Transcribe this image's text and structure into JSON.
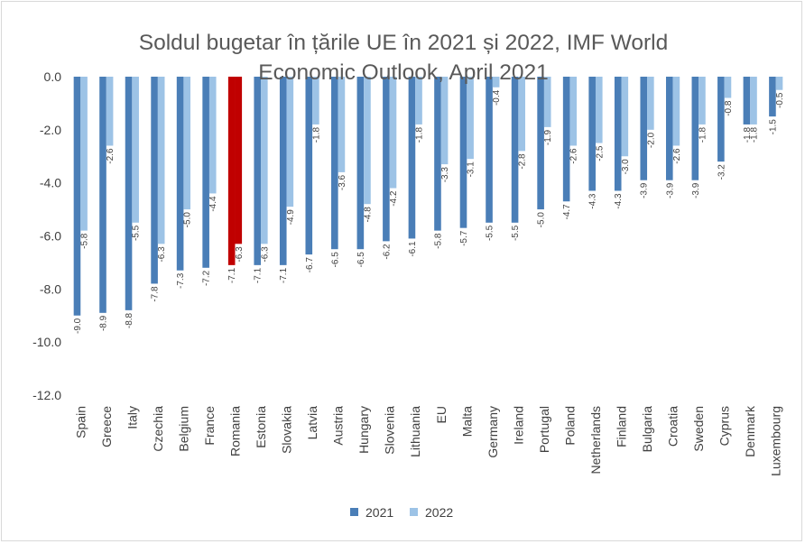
{
  "chart_data": {
    "type": "bar",
    "title": "Soldul bugetar în țările UE în 2021 și 2022, IMF World Economic Outlook, April 2021",
    "title_lines": [
      "Soldul bugetar în țările UE în 2021 și 2022, IMF World",
      "Economic Outlook, April 2021"
    ],
    "xlabel": "",
    "ylabel": "",
    "ylim": [
      -12,
      0
    ],
    "yticks": [
      0,
      -2,
      -4,
      -6,
      -8,
      -10,
      -12
    ],
    "ytick_labels": [
      "0.0",
      "-2.0",
      "-4.0",
      "-6.0",
      "-8.0",
      "-10.0",
      "-12.0"
    ],
    "grid": false,
    "legend": "bottom",
    "categories": [
      "Spain",
      "Greece",
      "Italy",
      "Czechia",
      "Belgium",
      "France",
      "Romania",
      "Estonia",
      "Slovakia",
      "Latvia",
      "Austria",
      "Hungary",
      "Slovenia",
      "Lithuania",
      "EU",
      "Malta",
      "Germany",
      "Ireland",
      "Portugal",
      "Poland",
      "Netherlands",
      "Finland",
      "Bulgaria",
      "Croatia",
      "Sweden",
      "Cyprus",
      "Denmark",
      "Luxembourg"
    ],
    "series": [
      {
        "name": "2021",
        "color": "#4a7eb7",
        "values": [
          -9.0,
          -8.9,
          -8.8,
          -7.8,
          -7.3,
          -7.2,
          -7.1,
          -7.1,
          -7.1,
          -6.7,
          -6.5,
          -6.5,
          -6.2,
          -6.1,
          -5.8,
          -5.7,
          -5.5,
          -5.5,
          -5.0,
          -4.7,
          -4.3,
          -4.3,
          -3.9,
          -3.9,
          -3.9,
          -3.2,
          -1.8,
          -1.5
        ],
        "labels": [
          "-9.0",
          "-8.9",
          "-8.8",
          "-7.8",
          "-7.3",
          "-7.2",
          "-7.1",
          "-7.1",
          "-7.1",
          "-6.7",
          "-6.5",
          "-6.5",
          "-6.2",
          "-6.1",
          "-5.8",
          "-5.7",
          "-5.5",
          "-5.5",
          "-5.0",
          "-4.7",
          "-4.3",
          "-4.3",
          "-3.9",
          "-3.9",
          "-3.9",
          "-3.2",
          "-1.8",
          "-1.5"
        ]
      },
      {
        "name": "2022",
        "color": "#9dc3e6",
        "values": [
          -5.8,
          -2.6,
          -5.5,
          -6.3,
          -5.0,
          -4.4,
          -6.3,
          -6.3,
          -4.9,
          -1.8,
          -3.6,
          -4.8,
          -4.2,
          -1.8,
          -3.3,
          -3.1,
          -0.4,
          -2.8,
          -1.9,
          -2.6,
          -2.5,
          -3.0,
          -2.0,
          -2.6,
          -1.8,
          -0.8,
          -1.8,
          -0.5
        ],
        "labels": [
          "-5.8",
          "-2.6",
          "-5.5",
          "-6.3",
          "-5.0",
          "-4.4",
          "-6.3",
          "-6.3",
          "-4.9",
          "-1.8",
          "-3.6",
          "-4.8",
          "-4.2",
          "-1.8",
          "-3.3",
          "-3.1",
          "-0.4",
          "-2.8",
          "-1.9",
          "-2.6",
          "-2.5",
          "-3.0",
          "-2.0",
          "-2.6",
          "-1.8",
          "-0.8",
          "-1.8",
          "-0.5"
        ]
      }
    ],
    "highlight": {
      "category": "Romania",
      "color": "#c00000"
    }
  }
}
